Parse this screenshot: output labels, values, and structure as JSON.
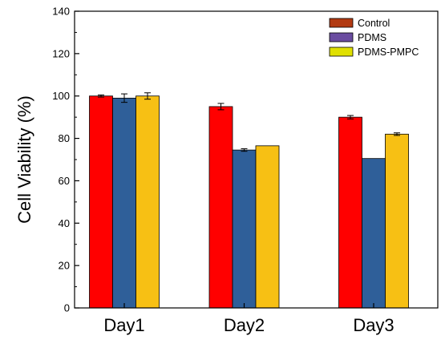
{
  "chart_data": {
    "type": "bar",
    "title": "",
    "xlabel": "",
    "ylabel": "Cell Viability (%)",
    "ylim": [
      0,
      140
    ],
    "yticks": [
      0,
      20,
      40,
      60,
      80,
      100,
      120,
      140
    ],
    "categories": [
      "Day1",
      "Day2",
      "Day3"
    ],
    "series": [
      {
        "name": "Control",
        "color": "#ff0000",
        "legend_color": "#b23a12",
        "values": [
          100,
          95,
          90
        ],
        "errors": [
          0.5,
          1.5,
          0.8
        ]
      },
      {
        "name": "PDMS",
        "color": "#2f5f99",
        "legend_color": "#6a4ca0",
        "values": [
          99,
          74.5,
          70.5
        ],
        "errors": [
          2,
          0.6,
          0
        ]
      },
      {
        "name": "PDMS-PMPC",
        "color": "#f7c014",
        "legend_color": "#e0e000",
        "values": [
          100,
          76.5,
          82
        ],
        "errors": [
          1.5,
          0,
          0.6
        ]
      }
    ],
    "legend_position": "top-right",
    "grid": false
  }
}
